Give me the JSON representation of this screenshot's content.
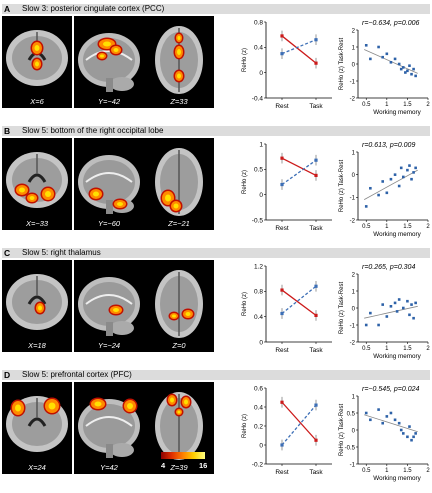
{
  "colors": {
    "rest_high": "#cc1a1a",
    "task_high": "#3d6fb6",
    "blob": "#ff8a00",
    "scatter_points": "#2e62a8"
  },
  "legend": {
    "categories": [
      "Rest",
      "Task"
    ],
    "line_ylabel": "ReHo (z)",
    "scatter_ylabel": "ReHo (z) Task-Rest",
    "scatter_xlabel": "Working memory"
  },
  "colorbar": {
    "min": "4",
    "max": "16"
  },
  "panels": [
    {
      "letter": "A",
      "title": "Slow 3: posterior cingulate cortex (PCC)",
      "coords": [
        "X=6",
        "Y=−42",
        "Z=33"
      ],
      "line_yticks": [
        "0.8",
        "0.4",
        "0",
        "-0.4"
      ],
      "line_ylim": [
        -0.4,
        0.8
      ],
      "rest_values": [
        0.58,
        0.15
      ],
      "task_values": [
        0.3,
        0.52
      ],
      "red_series": "rest",
      "stat_r": "r=−0.634,",
      "stat_p": "p=0.006",
      "scatter_yticks": [
        "2",
        "1",
        "0",
        "-1",
        "-2"
      ],
      "scatter_ylim": [
        -2,
        2
      ],
      "scatter_xticks": [
        "0.5",
        "1",
        "1.5",
        "2"
      ],
      "scatter_xlim": [
        0.3,
        2
      ],
      "points": [
        [
          0.5,
          1.1
        ],
        [
          0.6,
          0.3
        ],
        [
          0.8,
          1.0
        ],
        [
          0.9,
          0.4
        ],
        [
          1.0,
          0.6
        ],
        [
          1.1,
          0.1
        ],
        [
          1.2,
          0.3
        ],
        [
          1.3,
          0.0
        ],
        [
          1.35,
          -0.3
        ],
        [
          1.4,
          -0.2
        ],
        [
          1.45,
          -0.5
        ],
        [
          1.5,
          -0.4
        ],
        [
          1.55,
          -0.1
        ],
        [
          1.6,
          -0.6
        ],
        [
          1.65,
          -0.3
        ],
        [
          1.7,
          -0.7
        ]
      ],
      "fit": [
        [
          0.45,
          0.85
        ],
        [
          1.75,
          -0.55
        ]
      ]
    },
    {
      "letter": "B",
      "title": "Slow 5: bottom of the right occipital lobe",
      "coords": [
        "X=−33",
        "Y=−60",
        "Z=−21"
      ],
      "line_yticks": [
        "1",
        "0.5",
        "0",
        "-0.5"
      ],
      "line_ylim": [
        -0.5,
        1
      ],
      "rest_values": [
        0.2,
        0.68
      ],
      "task_values": [
        0.72,
        0.38
      ],
      "red_series": "task",
      "stat_r": "r=0.613,",
      "stat_p": "p=0.009",
      "scatter_yticks": [
        "1",
        "0",
        "-1",
        "-2"
      ],
      "scatter_ylim": [
        -2,
        1
      ],
      "scatter_xticks": [
        "0.5",
        "1",
        "1.5",
        "2"
      ],
      "scatter_xlim": [
        0.3,
        2
      ],
      "points": [
        [
          0.5,
          -1.4
        ],
        [
          0.6,
          -0.6
        ],
        [
          0.8,
          -0.9
        ],
        [
          0.9,
          -0.3
        ],
        [
          1.0,
          -0.8
        ],
        [
          1.1,
          -0.2
        ],
        [
          1.2,
          0.0
        ],
        [
          1.3,
          -0.5
        ],
        [
          1.35,
          0.3
        ],
        [
          1.4,
          -0.1
        ],
        [
          1.5,
          0.2
        ],
        [
          1.55,
          0.4
        ],
        [
          1.6,
          -0.2
        ],
        [
          1.65,
          0.1
        ],
        [
          1.7,
          0.3
        ]
      ],
      "fit": [
        [
          0.45,
          -1.1
        ],
        [
          1.75,
          0.2
        ]
      ]
    },
    {
      "letter": "C",
      "title": "Slow 5: right thalamus",
      "coords": [
        "X=18",
        "Y=−24",
        "Z=0"
      ],
      "line_yticks": [
        "1.2",
        "0.8",
        "0.4",
        "0"
      ],
      "line_ylim": [
        0,
        1.2
      ],
      "rest_values": [
        0.45,
        0.88
      ],
      "task_values": [
        0.82,
        0.42
      ],
      "red_series": "task",
      "stat_r": "r=0.265,",
      "stat_p": "p=0.304",
      "scatter_yticks": [
        "2",
        "1",
        "0",
        "-1",
        "-2"
      ],
      "scatter_ylim": [
        -2,
        2
      ],
      "scatter_xticks": [
        "0.5",
        "1",
        "1.5",
        "2"
      ],
      "scatter_xlim": [
        0.3,
        2
      ],
      "points": [
        [
          0.5,
          -1.0
        ],
        [
          0.6,
          -0.3
        ],
        [
          0.8,
          -1.0
        ],
        [
          0.9,
          0.2
        ],
        [
          1.0,
          -0.5
        ],
        [
          1.1,
          0.1
        ],
        [
          1.2,
          0.3
        ],
        [
          1.25,
          -0.2
        ],
        [
          1.3,
          0.5
        ],
        [
          1.4,
          0.0
        ],
        [
          1.5,
          0.4
        ],
        [
          1.55,
          -0.4
        ],
        [
          1.6,
          0.2
        ],
        [
          1.65,
          -0.6
        ],
        [
          1.7,
          0.3
        ]
      ],
      "fit": [
        [
          0.45,
          -0.6
        ],
        [
          1.75,
          0.1
        ]
      ]
    },
    {
      "letter": "D",
      "title": "Slow 5: prefrontal cortex (PFC)",
      "coords": [
        "X=24",
        "Y=42",
        "Z=39"
      ],
      "line_yticks": [
        "0.6",
        "0.4",
        "0.2",
        "0",
        "-0.2"
      ],
      "line_ylim": [
        -0.2,
        0.6
      ],
      "rest_values": [
        0.45,
        0.05
      ],
      "task_values": [
        0.0,
        0.42
      ],
      "red_series": "rest",
      "stat_r": "r=−0.545,",
      "stat_p": "p=0.024",
      "scatter_yticks": [
        "1",
        "0.5",
        "0",
        "-0.5",
        "-1"
      ],
      "scatter_ylim": [
        -1,
        1
      ],
      "scatter_xticks": [
        "0.5",
        "1",
        "1.5",
        "2"
      ],
      "scatter_xlim": [
        0.3,
        2
      ],
      "points": [
        [
          0.5,
          0.5
        ],
        [
          0.6,
          0.3
        ],
        [
          0.8,
          0.6
        ],
        [
          0.9,
          0.2
        ],
        [
          1.0,
          0.4
        ],
        [
          1.1,
          0.5
        ],
        [
          1.2,
          0.3
        ],
        [
          1.3,
          0.2
        ],
        [
          1.35,
          0.0
        ],
        [
          1.4,
          -0.1
        ],
        [
          1.5,
          -0.2
        ],
        [
          1.55,
          0.1
        ],
        [
          1.6,
          -0.3
        ],
        [
          1.65,
          -0.2
        ],
        [
          1.7,
          -0.1
        ]
      ],
      "fit": [
        [
          0.45,
          0.45
        ],
        [
          1.75,
          -0.05
        ]
      ]
    }
  ]
}
